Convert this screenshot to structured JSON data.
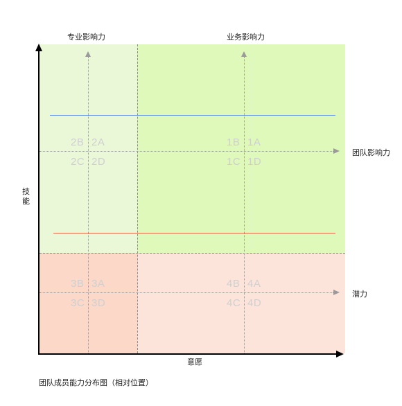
{
  "colors": {
    "q_top_left": "#ebf8d8",
    "q_top_right": "#dff9ba",
    "q_bottom_left": "#fbd8c8",
    "q_bottom_right": "#fde4da",
    "blue_line": "#6b9be6",
    "red_line": "#e46b4a",
    "axis": "#000000"
  },
  "top_labels": {
    "left": "专业影响力",
    "right": "业务影响力"
  },
  "right_labels": {
    "top": "团队影响力",
    "bottom": "潜力"
  },
  "axes": {
    "x_label": "意愿",
    "y_label_1": "技",
    "y_label_2": "能"
  },
  "cells": {
    "c2B": "2B",
    "c2A": "2A",
    "c2C": "2C",
    "c2D": "2D",
    "c1B": "1B",
    "c1A": "1A",
    "c1C": "1C",
    "c1D": "1D",
    "c3B": "3B",
    "c3A": "3A",
    "c3C": "3C",
    "c3D": "3D",
    "c4B": "4B",
    "c4A": "4A",
    "c4C": "4C",
    "c4D": "4D"
  },
  "caption": "团队成员能力分布图（相对位置）"
}
